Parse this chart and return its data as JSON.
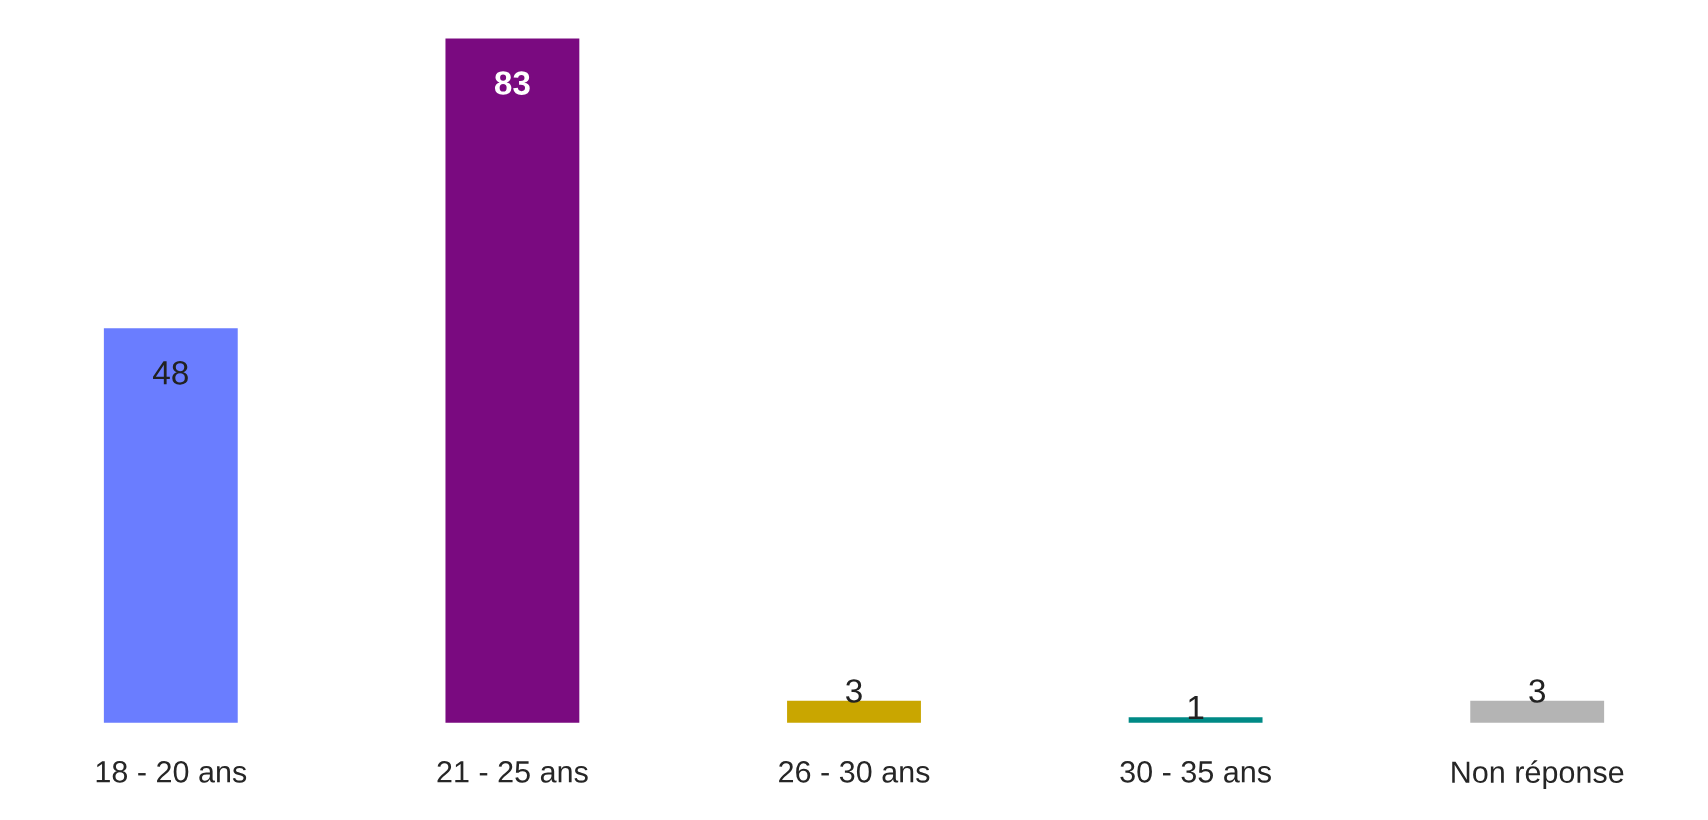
{
  "chart_data": {
    "type": "bar",
    "categories": [
      "18 - 20 ans",
      "21 - 25 ans",
      "26 - 30 ans",
      "30 - 35 ans",
      "Non réponse"
    ],
    "values": [
      48,
      83,
      3,
      1,
      3
    ],
    "colors": [
      "#6a7dff",
      "#7a0a80",
      "#c9a600",
      "#008a86",
      "#b4b4b4"
    ],
    "data_labels": true,
    "grid": false,
    "legend": false
  }
}
